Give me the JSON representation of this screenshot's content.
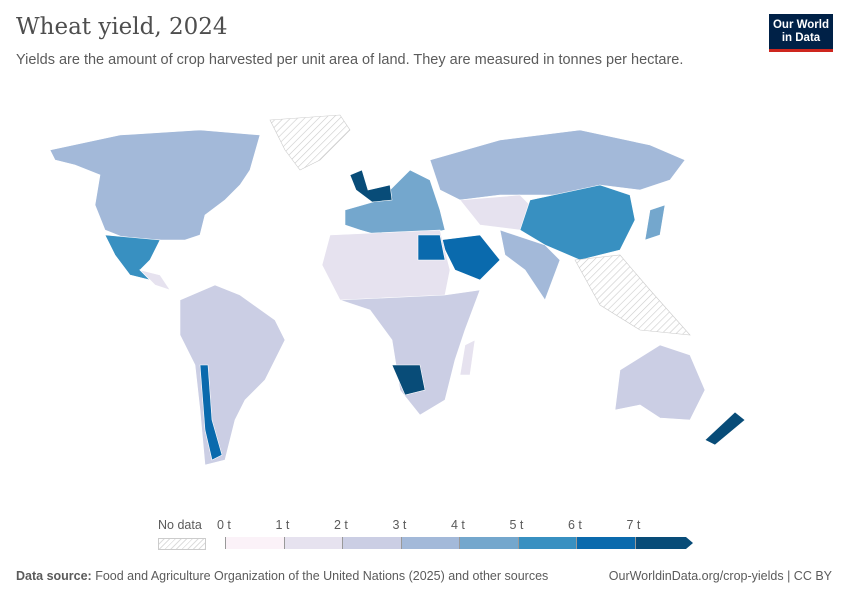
{
  "header": {
    "title": "Wheat yield, 2024",
    "subtitle": "Yields are the amount of crop harvested per unit area of land. They are measured in tonnes per hectare.",
    "logo_text": "Our World in Data"
  },
  "legend": {
    "no_data_label": "No data",
    "ticks": [
      "0 t",
      "1 t",
      "2 t",
      "3 t",
      "4 t",
      "5 t",
      "6 t",
      "7 t"
    ],
    "colors": [
      "#fbf2f8",
      "#e6e2ef",
      "#cbcee4",
      "#a3b9d9",
      "#74a7cd",
      "#3890c1",
      "#0a6aad",
      "#084c78"
    ],
    "no_data_color": "#e0e0e0"
  },
  "footer": {
    "source_label": "Data source:",
    "source_text": "Food and Agriculture Organization of the United Nations (2025) and other sources",
    "url": "OurWorldinData.org/crop-yields | CC BY"
  }
}
